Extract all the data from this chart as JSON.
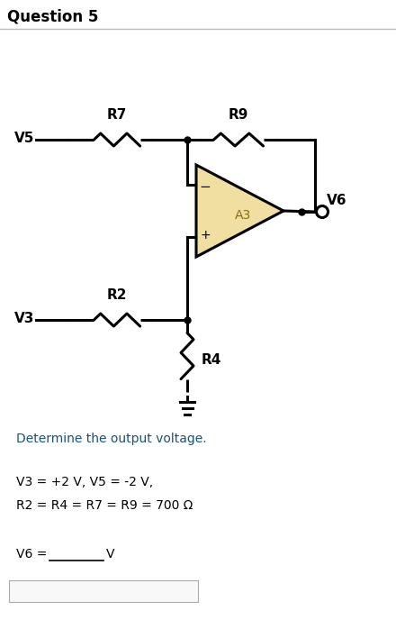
{
  "title": "Question 5",
  "bg_color": "#ffffff",
  "text_color": "#000000",
  "blue_text_color": "#1a5276",
  "op_amp_fill": "#f0dfa0",
  "op_amp_label": "A3",
  "line_color": "#000000",
  "line_width": 2.2,
  "description_text": "Determine the output voltage.",
  "values_text1": "V3 = +2 V, V5 = -2 V,",
  "values_text2": "R2 = R4 = R7 = R9 = 700 Ω",
  "answer_label": "V6 = ",
  "answer_line": "_______ ",
  "answer_unit": "V",
  "label_V5": "V5",
  "label_R7": "R7",
  "label_R9": "R9",
  "label_R2": "R2",
  "label_V3": "V3",
  "label_R4": "R4",
  "label_V6": "V6",
  "minus_sign": "−",
  "plus_sign": "+"
}
